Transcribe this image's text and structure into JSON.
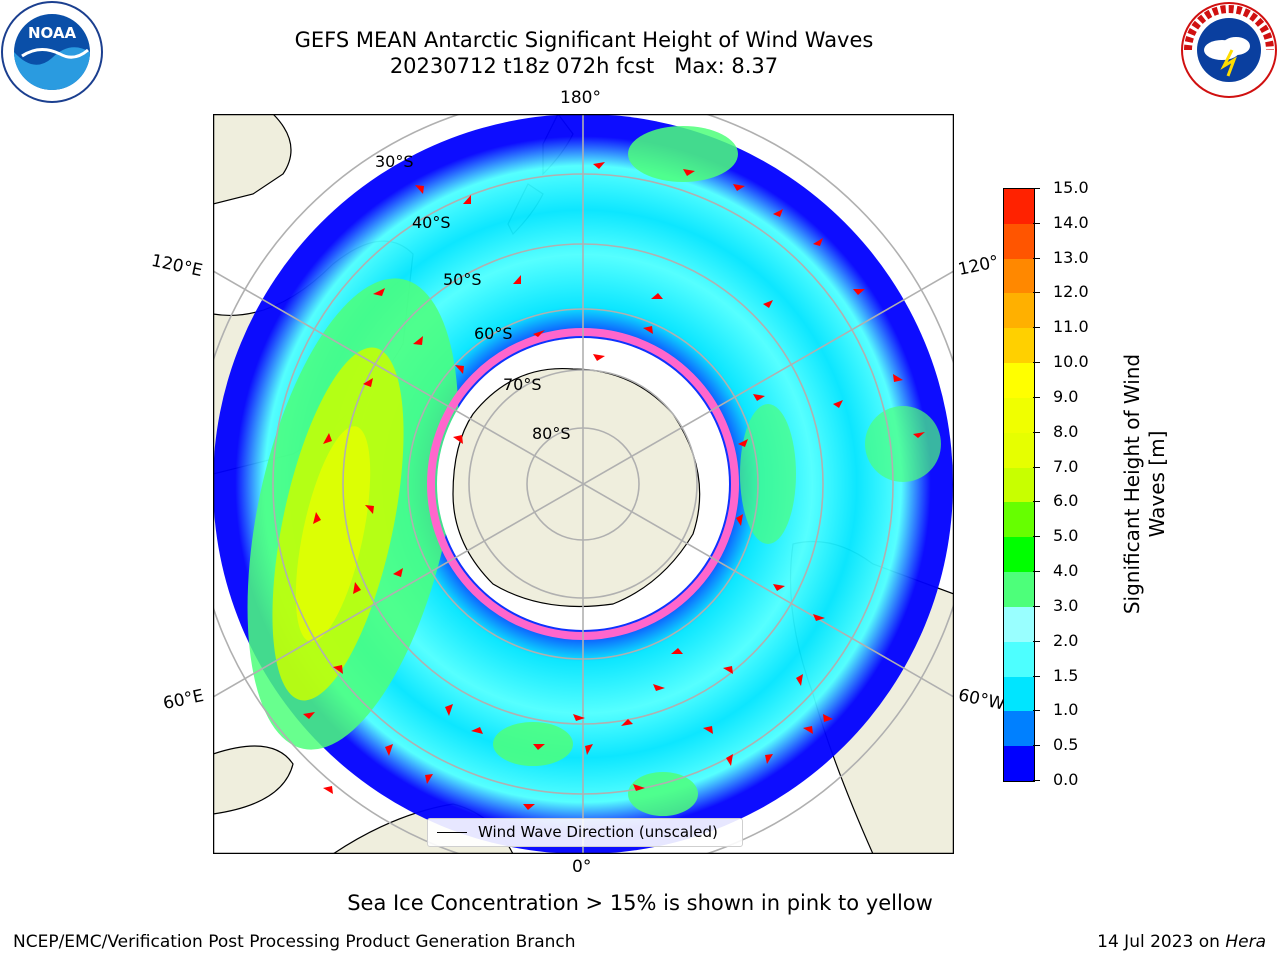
{
  "header": {
    "title_line1": "GEFS MEAN Antarctic Significant Height of Wind Waves",
    "title_line2": "20230712 t18z 072h fcst   Max: 8.37"
  },
  "logos": {
    "left": "noara-logo-icon",
    "right": "national-weather-service-logo-icon",
    "right_text": "NATIONAL WEATHER SERVICE"
  },
  "map": {
    "projection": "south polar stereographic",
    "longitude_labels": {
      "top": "180°",
      "bottom": "0°",
      "upper_left": "120°E",
      "lower_left": "60°E",
      "upper_right": "120°",
      "lower_right": "60°W"
    },
    "latitude_labels": [
      "30°S",
      "40°S",
      "50°S",
      "60°S",
      "70°S",
      "80°S"
    ],
    "colors": {
      "land": "#efeedd",
      "ocean_missing": "#ffffff",
      "grid": "#b0b0b0",
      "arrow": "#ff0000",
      "ice": "#ff66cc"
    },
    "legend": {
      "label": "Wind Wave Direction (unscaled)"
    }
  },
  "colorbar": {
    "label_line1": "Significant Height of Wind",
    "label_line2": "Waves [m]",
    "ticks": [
      "0.0",
      "0.5",
      "1.0",
      "1.5",
      "2.0",
      "3.0",
      "4.0",
      "5.0",
      "6.0",
      "7.0",
      "8.0",
      "9.0",
      "10.0",
      "11.0",
      "12.0",
      "13.0",
      "14.0",
      "15.0"
    ],
    "colors": [
      "#0000ff",
      "#0080ff",
      "#00e5ff",
      "#4dffff",
      "#99ffff",
      "#4dff7a",
      "#00ff00",
      "#66ff00",
      "#c8ff00",
      "#e6ff00",
      "#f0ff00",
      "#ffff00",
      "#ffd000",
      "#ffb000",
      "#ff8800",
      "#ff5500",
      "#ff2200"
    ]
  },
  "note": "Sea Ice Concentration > 15% is shown in pink to yellow",
  "footer": {
    "left": "NCEP/EMC/Verification Post Processing Product Generation Branch",
    "right_date": "14 Jul 2023 on ",
    "right_host": "Hera"
  }
}
